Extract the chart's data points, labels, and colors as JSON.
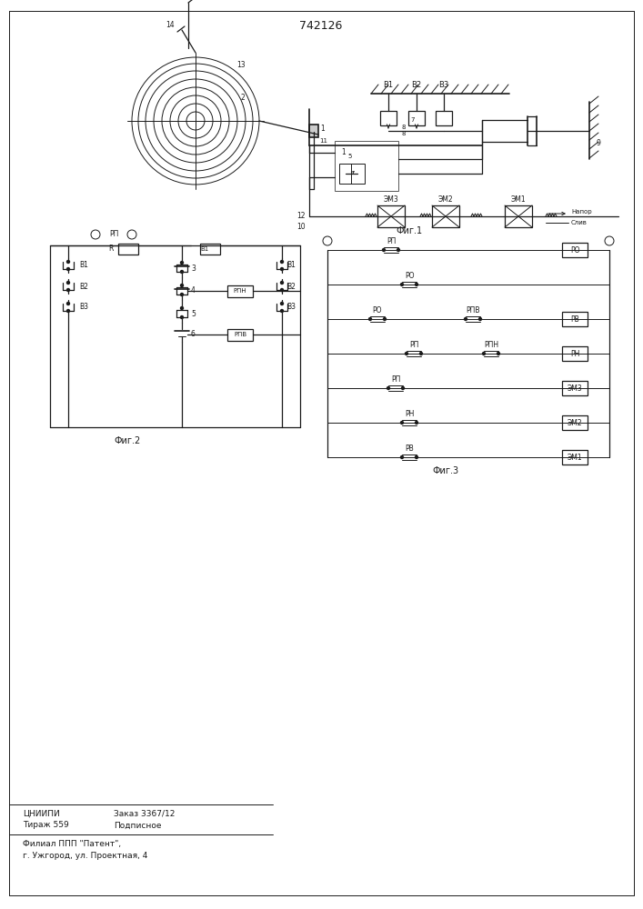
{
  "title": "742126",
  "fig1_label": "Фиг.1",
  "fig2_label": "Фиг.2",
  "fig3_label": "Фиг.3",
  "footer_line1": "ЦНИИПИ",
  "footer_line2": "Заказ 3367/12",
  "footer_line3": "Тираж 559",
  "footer_line4": "Подписное",
  "footer_line5": "Филиал ППП \"Патент\",",
  "footer_line6": "г. Ужгород, ул. Проектная, 4",
  "bg_color": "#ffffff",
  "line_color": "#1a1a1a"
}
